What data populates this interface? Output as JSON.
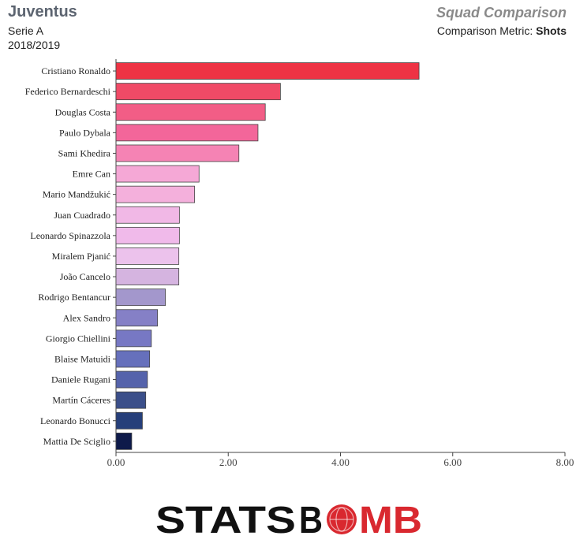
{
  "header": {
    "team": "Juventus",
    "league": "Serie A",
    "season": "2018/2019",
    "comparison_title": "Squad Comparison",
    "metric_label": "Comparison Metric:",
    "metric_value": "Shots"
  },
  "logo": {
    "text_left": "STATS",
    "text_right": "MB",
    "icon": "bomb-o-icon"
  },
  "chart_data": {
    "type": "bar",
    "orientation": "horizontal",
    "categories": [
      "Cristiano Ronaldo",
      "Federico Bernardeschi",
      "Douglas Costa",
      "Paulo Dybala",
      "Sami Khedira",
      "Emre Can",
      "Mario Mandžukić",
      "Juan Cuadrado",
      "Leonardo Spinazzola",
      "Miralem Pjanić",
      "João Cancelo",
      "Rodrigo Bentancur",
      "Alex Sandro",
      "Giorgio Chiellini",
      "Blaise Matuidi",
      "Daniele Rugani",
      "Martín Cáceres",
      "Leonardo Bonucci",
      "Mattia De Sciglio"
    ],
    "values": [
      5.4,
      2.93,
      2.66,
      2.53,
      2.19,
      1.48,
      1.4,
      1.13,
      1.13,
      1.12,
      1.12,
      0.88,
      0.74,
      0.63,
      0.6,
      0.56,
      0.53,
      0.47,
      0.28
    ],
    "colors": [
      "#ee3344",
      "#f04a66",
      "#f25d86",
      "#f3669a",
      "#f583b4",
      "#f5a8d6",
      "#f4b0dc",
      "#f1b8e6",
      "#f0baea",
      "#ecc2ec",
      "#d5b4e0",
      "#a397cc",
      "#8580c6",
      "#7778c4",
      "#6670bc",
      "#5563ab",
      "#3b4f8a",
      "#263f7a",
      "#0e1a4a"
    ],
    "xlim": [
      0,
      8
    ],
    "xticks": [
      "0.00",
      "2.00",
      "4.00",
      "6.00",
      "8.00"
    ],
    "grid": false
  }
}
